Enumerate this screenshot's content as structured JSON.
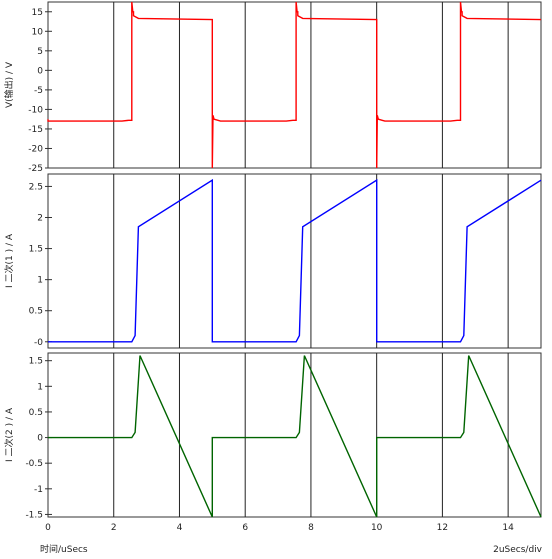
{
  "chart_data": {
    "x_axis": {
      "min": 0,
      "max": 15,
      "ticks": [
        0,
        2,
        4,
        6,
        8,
        10,
        12,
        14
      ],
      "label": "时间/uSecs",
      "scale_label": "2uSecs/div"
    },
    "panels": [
      {
        "type": "line",
        "ylabel": "V(输出) / V",
        "ylim": [
          -25,
          17.5
        ],
        "yticks": [
          15,
          10,
          5,
          0,
          -5,
          -10,
          -15,
          -20,
          -25
        ],
        "series": [
          {
            "color": "#ff0000",
            "x": [
              0,
              0,
              2.25,
              2.45,
              2.55,
              2.55,
              2.58,
              2.6,
              2.6,
              2.75,
              5.0,
              5.0,
              5.02,
              5.05,
              5.25,
              7.25,
              7.45,
              7.55,
              7.55,
              7.58,
              7.6,
              7.6,
              7.75,
              10.0,
              10.0,
              10.02,
              10.05,
              10.25,
              12.25,
              12.45,
              12.55,
              12.55,
              12.58,
              12.6,
              12.6,
              12.75,
              15.0
            ],
            "values": [
              -12.5,
              -13,
              -13,
              -12.8,
              -12.8,
              17.5,
              15,
              15,
              14,
              13.3,
              13,
              -25,
              -11.5,
              -12.5,
              -13,
              -13,
              -12.8,
              -12.8,
              17.5,
              15,
              15,
              14,
              13.3,
              13,
              -25,
              -11.5,
              -12.5,
              -13,
              -13,
              -12.8,
              -12.8,
              17.5,
              15,
              15,
              14,
              13.3,
              13
            ]
          }
        ]
      },
      {
        "type": "line",
        "ylabel": "I  二次(1 ) / A",
        "ylim": [
          -0.1,
          2.7
        ],
        "yticks": [
          2.5,
          2,
          1.5,
          1,
          0.5,
          0
        ],
        "ytick_labels": [
          "2.5",
          "2",
          "1.5",
          "1",
          "0.5",
          "-0"
        ],
        "series": [
          {
            "color": "#0000ff",
            "x": [
              0,
              2.55,
              2.65,
              2.75,
              5.0,
              5.0,
              7.55,
              7.65,
              7.75,
              10.0,
              10.0,
              12.55,
              12.65,
              12.75,
              15.0
            ],
            "values": [
              0,
              0,
              0.1,
              1.85,
              2.6,
              0,
              0,
              0.1,
              1.85,
              2.6,
              0,
              0,
              0.1,
              1.85,
              2.6
            ]
          }
        ]
      },
      {
        "type": "line",
        "ylabel": "I  二次(2 ) / A",
        "ylim": [
          -1.55,
          1.65
        ],
        "yticks": [
          1.5,
          1,
          0.5,
          0,
          -0.5,
          -1,
          -1.5
        ],
        "series": [
          {
            "color": "#006400",
            "x": [
              0,
              2.55,
              2.65,
              2.8,
              5.0,
              5.0,
              7.55,
              7.65,
              7.8,
              10.0,
              10.0,
              12.55,
              12.65,
              12.8,
              15.0
            ],
            "values": [
              0,
              0,
              0.1,
              1.6,
              -1.55,
              0,
              0,
              0.1,
              1.6,
              -1.55,
              0,
              0,
              0.1,
              1.6,
              -1.55
            ]
          }
        ]
      }
    ]
  }
}
